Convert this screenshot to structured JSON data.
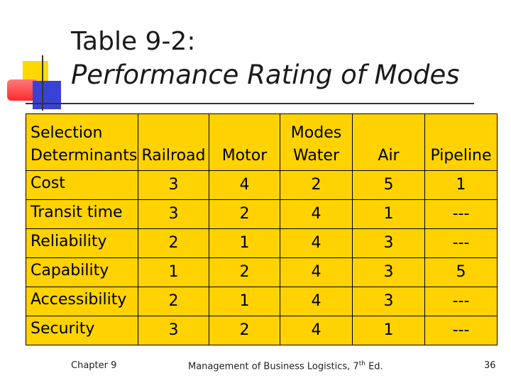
{
  "title": {
    "line1": "Table 9-2:",
    "line2": "Performance Rating of Modes"
  },
  "table": {
    "header_stub": [
      "Selection",
      "Determinants"
    ],
    "header_group": "Modes",
    "columns": [
      "Railroad",
      "Motor",
      "Water",
      "Air",
      "Pipeline"
    ],
    "rows": [
      {
        "label": "Cost",
        "values": [
          "3",
          "4",
          "2",
          "5",
          "1"
        ]
      },
      {
        "label": "Transit time",
        "values": [
          "3",
          "2",
          "4",
          "1",
          "---"
        ]
      },
      {
        "label": "Reliability",
        "values": [
          "2",
          "1",
          "4",
          "3",
          "---"
        ]
      },
      {
        "label": "Capability",
        "values": [
          "1",
          "2",
          "4",
          "3",
          "5"
        ]
      },
      {
        "label": "Accessibility",
        "values": [
          "2",
          "1",
          "4",
          "3",
          "---"
        ]
      },
      {
        "label": "Security",
        "values": [
          "3",
          "2",
          "4",
          "1",
          "---"
        ]
      }
    ]
  },
  "footer": {
    "left": "Chapter 9",
    "middle": "Management of Business Logistics,",
    "middle_edition": "7",
    "middle_sup": "th",
    "middle_end": "Ed.",
    "page_number": "36"
  }
}
